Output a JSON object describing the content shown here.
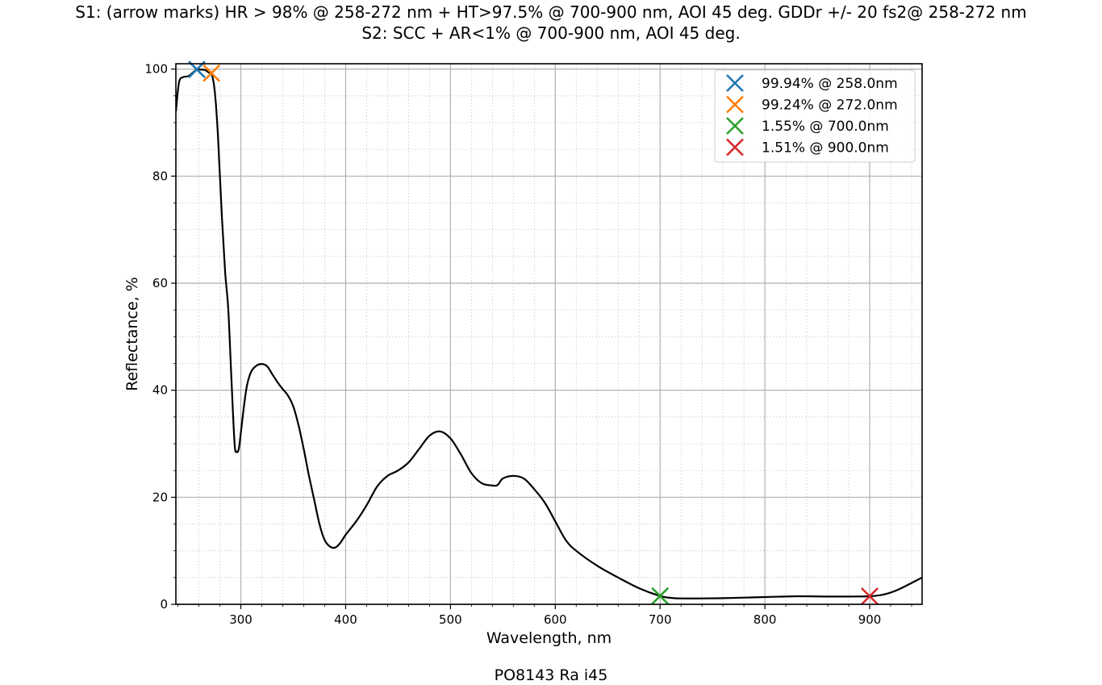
{
  "figure": {
    "title_line1": "S1: (arrow marks) HR > 98% @ 258-272 nm  + HT>97.5% @ 700-900 nm, AOI 45 deg. GDDr +/- 20 fs2@ 258-272 nm",
    "title_line2": "S2: SCC + AR<1% @ 700-900 nm, AOI 45 deg.",
    "footer": "PO8143 Ra i45"
  },
  "chart_data": {
    "type": "line",
    "xlabel": "Wavelength, nm",
    "ylabel": "Reflectance, %",
    "xlim": [
      238,
      950
    ],
    "ylim": [
      0,
      101
    ],
    "x_ticks": [
      300,
      400,
      500,
      600,
      700,
      800,
      900
    ],
    "y_ticks": [
      0,
      20,
      40,
      60,
      80,
      100
    ],
    "grid": true,
    "minor_grid": true,
    "legend_position": "top-right",
    "series": [
      {
        "color": "#000000",
        "x": [
          238,
          241,
          245,
          250,
          255,
          258,
          262,
          266,
          270,
          272,
          275,
          278,
          282,
          285,
          288,
          291,
          294,
          296,
          298,
          300,
          303,
          306,
          310,
          315,
          320,
          325,
          330,
          335,
          340,
          345,
          350,
          355,
          360,
          365,
          370,
          375,
          380,
          385,
          390,
          395,
          400,
          410,
          420,
          430,
          440,
          450,
          460,
          470,
          480,
          490,
          500,
          510,
          520,
          530,
          540,
          545,
          550,
          560,
          570,
          580,
          590,
          600,
          610,
          620,
          640,
          660,
          680,
          700,
          710,
          720,
          740,
          760,
          780,
          800,
          830,
          860,
          880,
          900,
          910,
          920,
          930,
          940,
          950
        ],
        "y": [
          92,
          97.5,
          98.5,
          98.7,
          99.5,
          99.94,
          99.9,
          99.8,
          99.3,
          99.24,
          96,
          88,
          72,
          62,
          55,
          42,
          30,
          28.5,
          29,
          32,
          37,
          41,
          43.5,
          44.6,
          44.9,
          44.5,
          43,
          41.5,
          40.2,
          39,
          37,
          33.5,
          29,
          24,
          19.5,
          15,
          12,
          10.8,
          10.6,
          11.5,
          13,
          15.5,
          18.5,
          22,
          24,
          25,
          26.5,
          29,
          31.5,
          32.3,
          31,
          28,
          24.5,
          22.6,
          22.2,
          22.3,
          23.5,
          24,
          23.5,
          21.5,
          19,
          15.5,
          12,
          10,
          7.2,
          5,
          3,
          1.55,
          1.2,
          1.1,
          1.1,
          1.15,
          1.25,
          1.35,
          1.5,
          1.45,
          1.45,
          1.51,
          1.7,
          2.2,
          3.0,
          4.0,
          5.0
        ]
      }
    ],
    "markers": [
      {
        "label": "99.94% @ 258.0nm",
        "x": 258.0,
        "y": 99.94,
        "color": "#1f77b4"
      },
      {
        "label": "99.24% @ 272.0nm",
        "x": 272.0,
        "y": 99.24,
        "color": "#ff7f0e"
      },
      {
        "label": "1.55% @ 700.0nm",
        "x": 700.0,
        "y": 1.55,
        "color": "#2ca02c"
      },
      {
        "label": "1.51% @ 900.0nm",
        "x": 900.0,
        "y": 1.51,
        "color": "#d62728"
      }
    ]
  }
}
